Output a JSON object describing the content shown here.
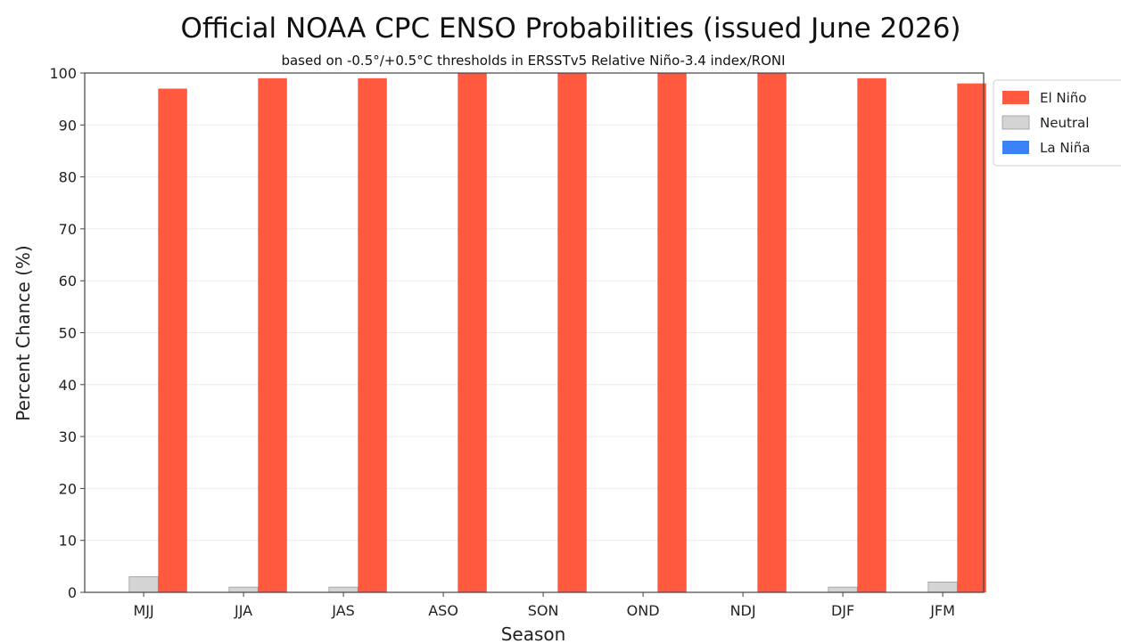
{
  "chart_data": {
    "type": "bar",
    "title": "Official NOAA CPC ENSO Probabilities (issued June 2026)",
    "subtitle": "based on -0.5°/+0.5°C thresholds in ERSSTv5 Relative Niño-3.4 index/RONI",
    "xlabel": "Season",
    "ylabel": "Percent Chance (%)",
    "ylim": [
      0,
      100
    ],
    "yticks": [
      0,
      10,
      20,
      30,
      40,
      50,
      60,
      70,
      80,
      90,
      100
    ],
    "grid": true,
    "legend_position": "top-right, outside plot",
    "categories": [
      "MJJ",
      "JJA",
      "JAS",
      "ASO",
      "SON",
      "OND",
      "NDJ",
      "DJF",
      "JFM"
    ],
    "series": [
      {
        "name": "La Niña",
        "color": "#3b82f6",
        "values": [
          0,
          0,
          0,
          0,
          0,
          0,
          0,
          0,
          0
        ]
      },
      {
        "name": "Neutral",
        "color": "#d4d4d4",
        "values": [
          3,
          1,
          1,
          0,
          0,
          0,
          0,
          1,
          2
        ]
      },
      {
        "name": "El Niño",
        "color": "#ff5a40",
        "values": [
          97,
          99,
          99,
          100,
          100,
          100,
          100,
          99,
          98
        ]
      }
    ],
    "legend_order": [
      "El Niño",
      "Neutral",
      "La Niña"
    ]
  }
}
